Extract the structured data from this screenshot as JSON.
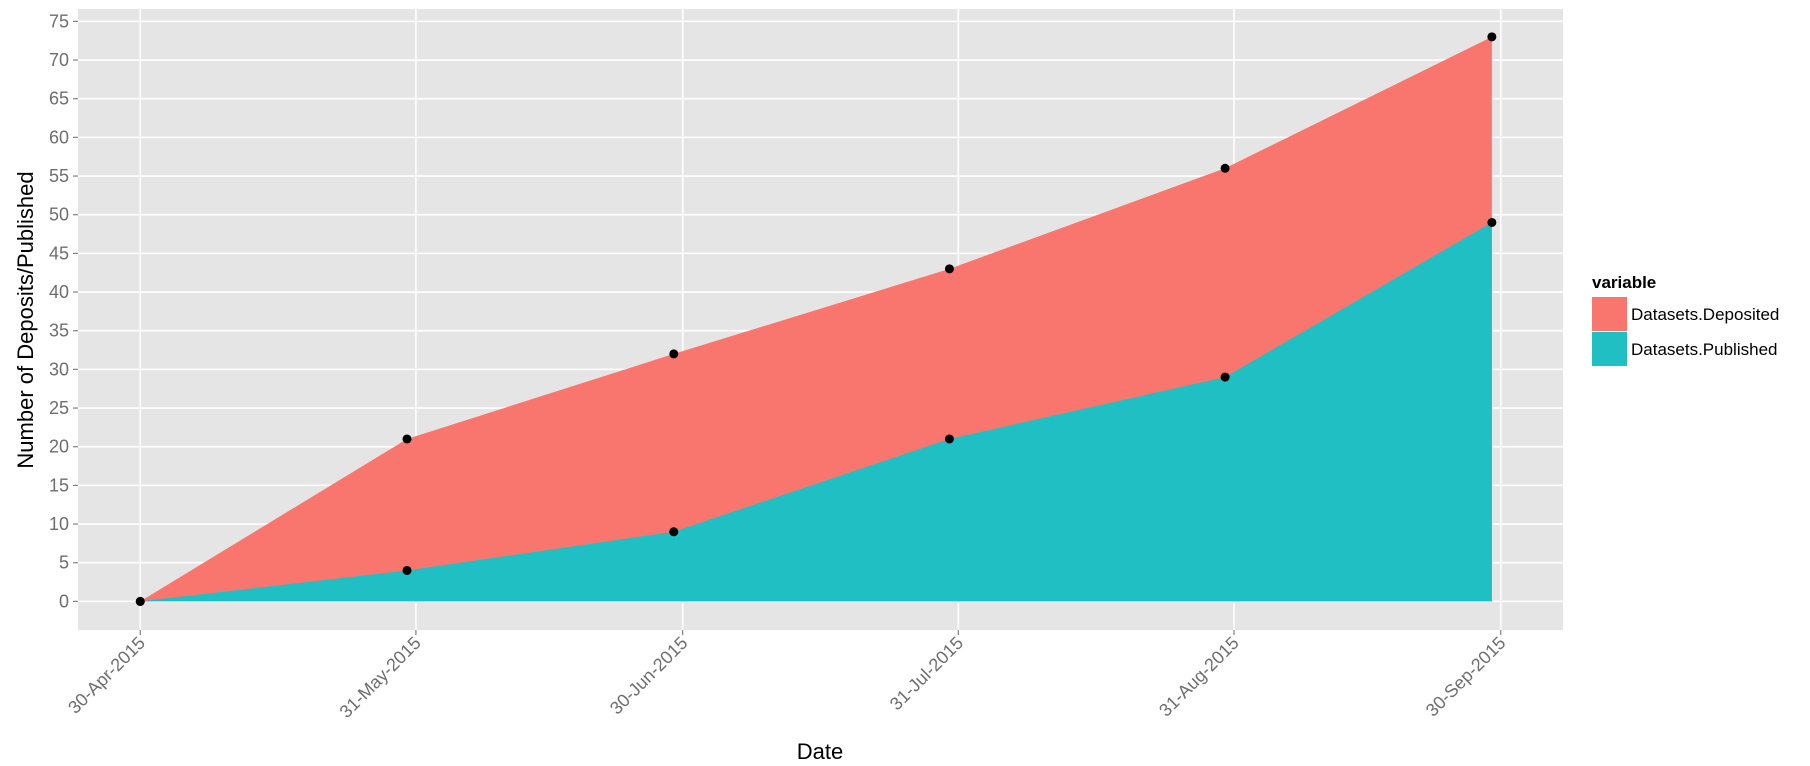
{
  "chart_data": {
    "type": "area",
    "x_label": "Date",
    "y_label": "Number of Deposits/Published",
    "legend_title": "variable",
    "x": [
      "2015-04-30",
      "2015-05-30",
      "2015-06-29",
      "2015-07-30",
      "2015-08-30",
      "2015-09-29"
    ],
    "series": [
      {
        "name": "Datasets.Deposited",
        "color": "#f8766d",
        "values": [
          0,
          21,
          32,
          43,
          56,
          73
        ]
      },
      {
        "name": "Datasets.Published",
        "color": "#1fbfc4",
        "values": [
          0,
          4,
          9,
          21,
          29,
          49
        ]
      }
    ],
    "xlim": [
      "2015-04-23",
      "2015-10-07"
    ],
    "xticks": [
      {
        "value": "2015-04-30",
        "label": "30-Apr-2015"
      },
      {
        "value": "2015-05-31",
        "label": "31-May-2015"
      },
      {
        "value": "2015-06-30",
        "label": "30-Jun-2015"
      },
      {
        "value": "2015-07-31",
        "label": "31-Jul-2015"
      },
      {
        "value": "2015-08-31",
        "label": "31-Aug-2015"
      },
      {
        "value": "2015-09-30",
        "label": "30-Sep-2015"
      }
    ],
    "ylim": [
      -3.7,
      76.6
    ],
    "yticks": [
      0,
      5,
      10,
      15,
      20,
      25,
      30,
      35,
      40,
      45,
      50,
      55,
      60,
      65,
      70,
      75
    ],
    "grid": true,
    "legend_position": "right",
    "point_color": "#000000"
  }
}
